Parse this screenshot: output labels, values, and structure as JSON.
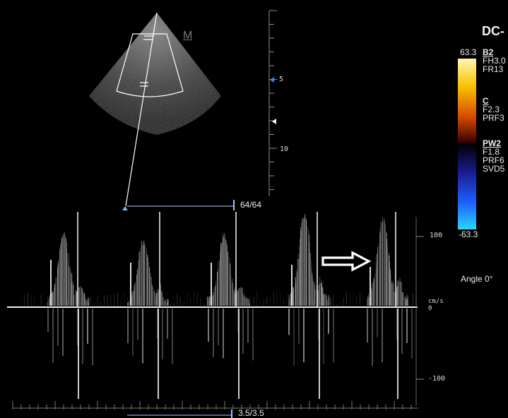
{
  "header": {
    "mode_label": "DC-"
  },
  "colorbar": {
    "top_value": "63.3",
    "bottom_value": "-63.3",
    "colors": [
      "#fff7b5",
      "#f7c400",
      "#d84a00",
      "#3a0000",
      "#000000",
      "#1a1a8a",
      "#1d5fff",
      "#28d7ff"
    ]
  },
  "params": {
    "b2": {
      "head": "B2",
      "lines": [
        "FH3.0",
        "FR13"
      ]
    },
    "c": {
      "head": "C",
      "lines": [
        "F2.3",
        "PRF3"
      ]
    },
    "pw2": {
      "head": "PW2",
      "lines": [
        "F1.8",
        "PRF6",
        "SVD5"
      ]
    }
  },
  "scan": {
    "marker": "M",
    "depth_5": "5",
    "depth_10": "10",
    "frame_counter": "64/64"
  },
  "doppler": {
    "axis_100": "100",
    "axis_unit": "cm/s",
    "axis_0": "0",
    "axis_neg100": "-100",
    "angle": "Angle 0°",
    "sweep_counter": "3.5/3.5"
  },
  "colors": {
    "text": "#ececec",
    "marker_blue": "#3b86ff",
    "arrow": "#ffffff",
    "scale_line": "#8d8d8d"
  }
}
